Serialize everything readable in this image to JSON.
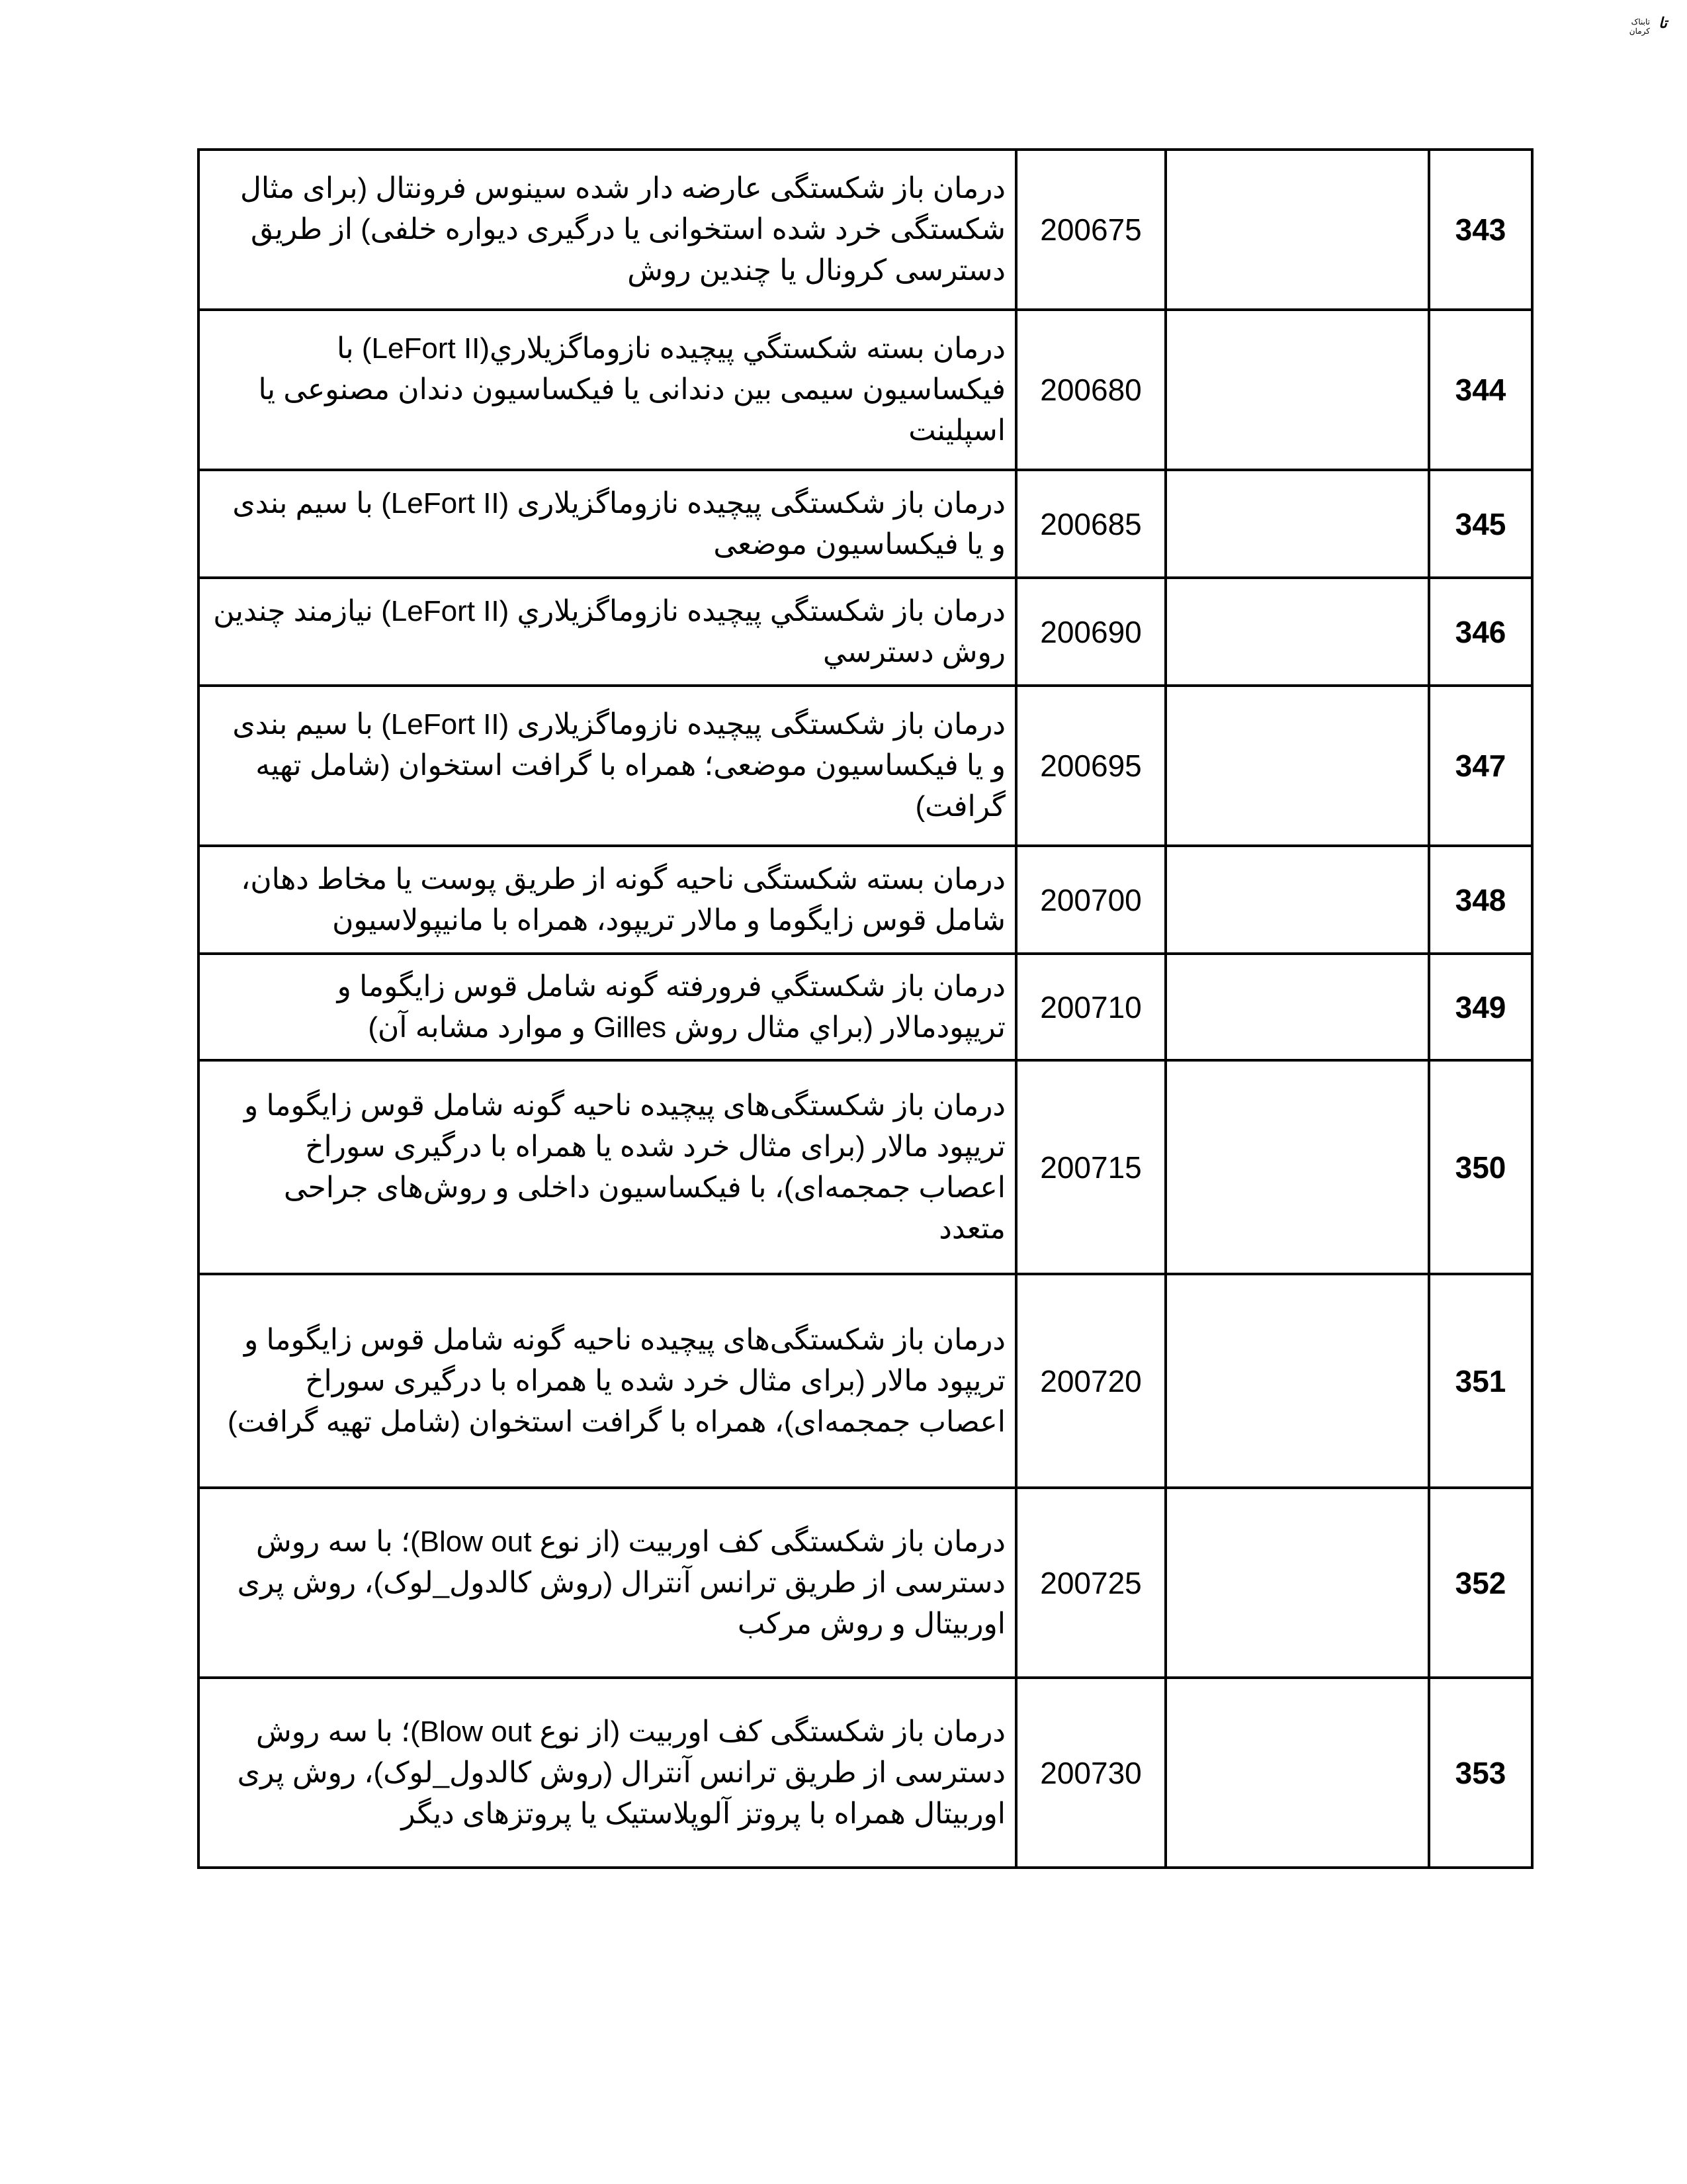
{
  "logo": {
    "text": "تابناک کرمان"
  },
  "rows": [
    {
      "num": "343",
      "code": "200675",
      "desc": "درمان باز شکستگی عارضه دار شده سینوس فرونتال (برای مثال شکستگی خرد شده استخوانی یا درگیری دیواره خلفی) از طریق دسترسی کرونال یا چندین روش"
    },
    {
      "num": "344",
      "code": "200680",
      "desc": "درمان بسته شکستگي پيچيده نازوماگزيلاري(LeFort II) با فیکساسیون سیمی بین دندانی یا فیکساسیون دندان مصنوعی یا اسپلینت"
    },
    {
      "num": "345",
      "code": "200685",
      "desc": "درمان باز شکستگی پیچیده نازوماگزیلاری (LeFort II) با سیم بندی و یا فیکساسیون موضعی"
    },
    {
      "num": "346",
      "code": "200690",
      "desc": "درمان باز شكستگي پيچيده نازوماگزيلاري (LeFort II) نيازمند چندين روش دسترسي"
    },
    {
      "num": "347",
      "code": "200695",
      "desc": "درمان باز شکستگی پیچیده نازوماگزیلاری (LeFort II) با سیم بندی و یا فیکساسیون موضعی؛ همراه با گرافت استخوان (شامل تهیه گرافت)"
    },
    {
      "num": "348",
      "code": "200700",
      "desc": "درمان بسته شکستگی ناحیه گونه از طریق پوست یا مخاط دهان، شامل قوس زایگوما و مالار تریپود، همراه با مانیپولاسیون"
    },
    {
      "num": "349",
      "code": "200710",
      "desc": "درمان باز شكستگي فرورفته گونه شامل قوس زايگوما و تريپودمالار (براي مثال روش Gilles و موارد مشابه آن)"
    },
    {
      "num": "350",
      "code": "200715",
      "desc": "درمان باز شکستگی‌های پیچیده ناحیه گونه شامل قوس زایگوما و تریپود مالار (برای مثال خرد شده یا همراه با درگیری سوراخ اعصاب جمجمه‌ای)، با فیکساسیون داخلی و روش‌های جراحی متعدد"
    },
    {
      "num": "351",
      "code": "200720",
      "desc": "درمان باز شکستگی‌های پیچیده ناحیه گونه شامل قوس زایگوما و تریپود مالار (برای مثال خرد شده یا همراه با درگیری سوراخ اعصاب جمجمه‌ای)، همراه با گرافت استخوان (شامل تهیه گرافت)"
    },
    {
      "num": "352",
      "code": "200725",
      "desc": "درمان باز شکستگی کف اوربیت (از نوع Blow out)؛ با سه روش دسترسی از طریق ترانس آنترال (روش کالدول_لوک)، روش پری اوربیتال و روش مرکب"
    },
    {
      "num": "353",
      "code": "200730",
      "desc": "درمان باز شکستگی کف اوربیت (از نوع Blow out)؛ با سه روش دسترسی از طریق ترانس آنترال (روش کالدول_لوک)، روش پری اوربیتال همراه با پروتز آلوپلاستیک یا پروتزهای دیگر"
    }
  ]
}
